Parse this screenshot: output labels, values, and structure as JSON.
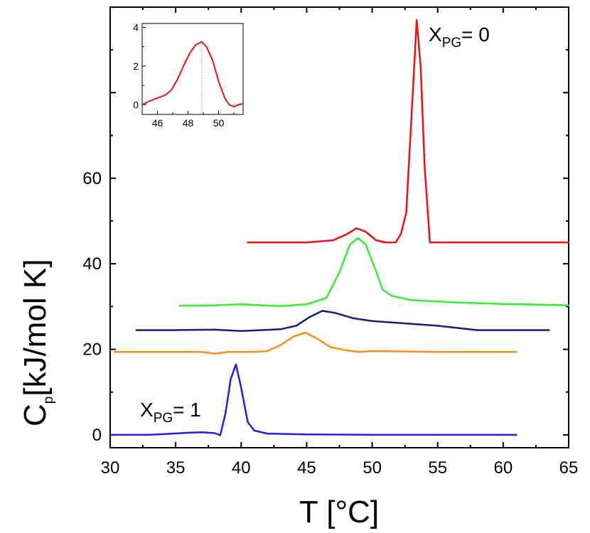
{
  "chart_data": {
    "type": "line",
    "xlabel": "T [°C]",
    "ylabel": {
      "main": "C",
      "sub": "p",
      "rest": "[kJ/mol K]"
    },
    "xlim": [
      30,
      65
    ],
    "ylim": [
      -3,
      100
    ],
    "xticks": [
      30,
      35,
      40,
      45,
      50,
      55,
      60,
      65
    ],
    "yticks": [
      0,
      20,
      40,
      60
    ],
    "annotations": [
      {
        "id": "pg0",
        "main": "X",
        "sub": "PG",
        "rest": "= 0"
      },
      {
        "id": "pg1",
        "main": "X",
        "sub": "PG",
        "rest": "= 1"
      }
    ],
    "series": [
      {
        "name": "XPG = 1",
        "color": "#1f1fe6",
        "x": [
          30,
          33,
          36,
          37,
          38,
          38.4,
          38.8,
          39.2,
          39.6,
          40.0,
          40.5,
          41.0,
          42,
          45,
          50,
          55,
          61
        ],
        "y": [
          0,
          0,
          0.5,
          0.6,
          0.4,
          -0.1,
          5,
          13,
          16.5,
          11,
          3,
          1,
          0.3,
          0.1,
          0,
          0,
          0
        ]
      },
      {
        "name": "orange",
        "color": "#ff8c1a",
        "x": [
          30.3,
          35,
          37,
          38,
          39,
          41,
          42,
          43,
          44,
          44.9,
          45.8,
          46.8,
          48,
          49,
          50,
          55,
          61
        ],
        "y": [
          19.4,
          19.4,
          19.4,
          19,
          19.4,
          19.4,
          19.6,
          21,
          23,
          23.9,
          22.5,
          20.5,
          19.8,
          19.4,
          19.6,
          19.4,
          19.4
        ]
      },
      {
        "name": "navy",
        "color": "#1a1a80",
        "x": [
          32,
          35,
          38,
          40,
          43,
          44.2,
          45.2,
          46.2,
          47.2,
          48.5,
          50,
          55,
          58,
          63.5
        ],
        "y": [
          24.5,
          24.5,
          24.6,
          24.3,
          24.7,
          25.5,
          27.5,
          29,
          28.5,
          27.3,
          26.6,
          25.5,
          24.5,
          24.5
        ]
      },
      {
        "name": "green",
        "color": "#33ee33",
        "x": [
          35.3,
          38,
          40,
          43,
          45,
          46.5,
          47.5,
          48.3,
          48.9,
          49.5,
          50.2,
          50.8,
          51.5,
          53,
          56,
          60,
          65
        ],
        "y": [
          30.2,
          30.3,
          30.5,
          30.1,
          30.5,
          32,
          38,
          44.5,
          46,
          44.5,
          39,
          34,
          32.5,
          31.5,
          31,
          30.6,
          30.3
        ]
      },
      {
        "name": "XPG = 0",
        "color": "#ee1111",
        "x": [
          40.5,
          43,
          45,
          47,
          48,
          48.8,
          49.5,
          50.3,
          51,
          51.8,
          52.2,
          52.6,
          53.1,
          53.4,
          53.7,
          54.0,
          54.4,
          55,
          60,
          65
        ],
        "y": [
          45,
          45,
          45,
          45.5,
          46.8,
          48.3,
          47.5,
          45.5,
          45,
          45,
          47,
          52,
          80,
          97,
          86,
          63,
          45,
          45,
          45,
          45
        ]
      }
    ],
    "inset": {
      "xlim": [
        45,
        51.6
      ],
      "ylim": [
        -0.5,
        4.2
      ],
      "xticks": [
        46,
        48,
        50
      ],
      "yticks": [
        0,
        2,
        4
      ],
      "peak_marker_x": 48.9,
      "color": "#ee1111",
      "x": [
        45,
        45.5,
        46,
        46.5,
        46.9,
        47.3,
        47.7,
        48.1,
        48.5,
        48.9,
        49.2,
        49.6,
        50,
        50.4,
        50.7,
        51,
        51.3,
        51.6
      ],
      "y": [
        0,
        0.2,
        0.35,
        0.5,
        0.75,
        1.3,
        2.0,
        2.65,
        3.1,
        3.25,
        3.0,
        2.3,
        1.2,
        0.35,
        0.0,
        -0.1,
        0.0,
        0.05
      ]
    }
  }
}
